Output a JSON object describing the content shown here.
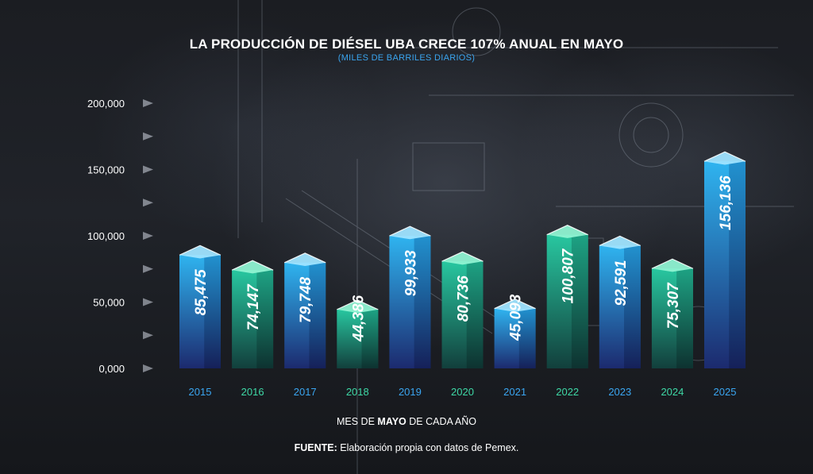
{
  "header": {
    "title": "LA PRODUCCIÓN DE DIÉSEL UBA CRECE 107% ANUAL EN MAYO",
    "subtitle": "(MILES DE BARRILES DIARIOS)"
  },
  "footer": {
    "xlabel_prefix": "MES DE ",
    "xlabel_bold": "MAYO",
    "xlabel_suffix": " DE CADA AÑO",
    "source_bold": "FUENTE:",
    "source_text": " Elaboración propia con datos de Pemex."
  },
  "colors": {
    "blue_top": "#2fb4f0",
    "blue_bottom": "#1c2a6e",
    "green_top": "#28c7a0",
    "green_bottom": "#123f3c",
    "label_blue": "#3aa5f0",
    "label_green": "#3ed8a6"
  },
  "chart_data": {
    "type": "bar",
    "title": "LA PRODUCCIÓN DE DIÉSEL UBA CRECE 107% ANUAL EN MAYO",
    "subtitle": "(MILES DE BARRILES DIARIOS)",
    "xlabel": "MES DE MAYO DE CADA AÑO",
    "ylabel": "",
    "ylim": [
      0,
      200000
    ],
    "yticks": [
      0,
      50000,
      100000,
      150000,
      200000
    ],
    "ytick_labels": [
      "0,000",
      "50,000",
      "100,000",
      "150,000",
      "200,000"
    ],
    "categories": [
      "2015",
      "2016",
      "2017",
      "2018",
      "2019",
      "2020",
      "2021",
      "2022",
      "2023",
      "2024",
      "2025"
    ],
    "values": [
      85475,
      74147,
      79748,
      44386,
      99933,
      80736,
      45093,
      100807,
      92591,
      75307,
      156136
    ],
    "value_labels": [
      "85,475",
      "74,147",
      "79,748",
      "44,386",
      "99,933",
      "80,736",
      "45,093",
      "100,807",
      "92,591",
      "75,307",
      "156,136"
    ],
    "bar_colors": [
      "blue",
      "green",
      "blue",
      "green",
      "blue",
      "green",
      "blue",
      "green",
      "blue",
      "green",
      "blue"
    ],
    "grid": false,
    "legend": "none"
  }
}
